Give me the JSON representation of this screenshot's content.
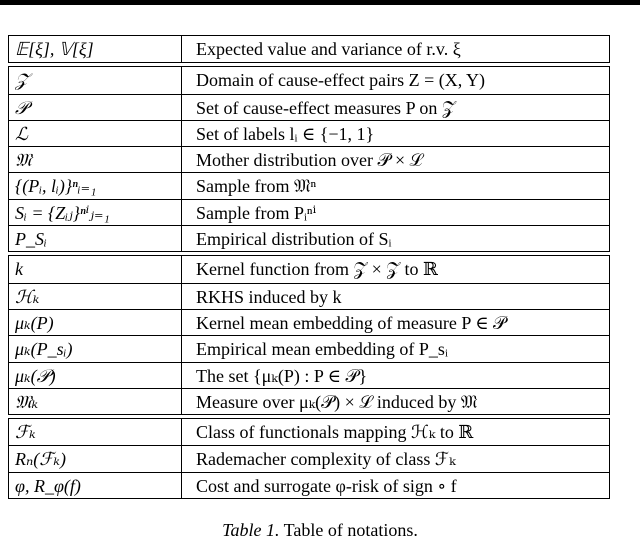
{
  "groups": [
    {
      "rows": [
        {
          "symbol": "𝔼[ξ], 𝕍[ξ]",
          "description": "Expected value and variance of r.v. ξ"
        }
      ]
    },
    {
      "rows": [
        {
          "symbol": "𝒵",
          "description": "Domain of cause-effect pairs Z = (X, Y)"
        },
        {
          "symbol": "𝒫",
          "description": "Set of cause-effect measures P on 𝒵"
        },
        {
          "symbol": "ℒ",
          "description": "Set of labels lᵢ ∈ {−1, 1}"
        },
        {
          "symbol": "𝔐",
          "description": "Mother distribution over 𝒫 × ℒ"
        },
        {
          "symbol": "{(Pᵢ, lᵢ)}ⁿᵢ₌₁",
          "description": "Sample from 𝔐ⁿ"
        },
        {
          "symbol": "Sᵢ = {Zᵢⱼ}ⁿⁱⱼ₌₁",
          "description": "Sample from Pᵢⁿⁱ"
        },
        {
          "symbol": "P_Sᵢ",
          "description": "Empirical distribution of Sᵢ"
        }
      ]
    },
    {
      "rows": [
        {
          "symbol": "k",
          "description": "Kernel function from 𝒵 × 𝒵 to ℝ"
        },
        {
          "symbol": "ℋₖ",
          "description": "RKHS induced by k"
        },
        {
          "symbol": "μₖ(P)",
          "description": "Kernel mean embedding of measure P ∈ 𝒫"
        },
        {
          "symbol": "μₖ(P_sᵢ)",
          "description": "Empirical mean embedding of P_sᵢ"
        },
        {
          "symbol": "μₖ(𝒫)",
          "description": "The set {μₖ(P) : P ∈ 𝒫}"
        },
        {
          "symbol": "𝔐ₖ",
          "description": "Measure over μₖ(𝒫) × ℒ induced by 𝔐"
        }
      ]
    },
    {
      "rows": [
        {
          "symbol": "ℱₖ",
          "description": "Class of functionals mapping ℋₖ to ℝ"
        },
        {
          "symbol": "Rₙ(ℱₖ)",
          "description": "Rademacher complexity of class ℱₖ"
        },
        {
          "symbol": "φ, R_φ(f)",
          "description": "Cost and surrogate φ-risk of sign ∘ f"
        }
      ]
    }
  ],
  "caption": {
    "label": "Table 1.",
    "text": "Table of notations."
  }
}
